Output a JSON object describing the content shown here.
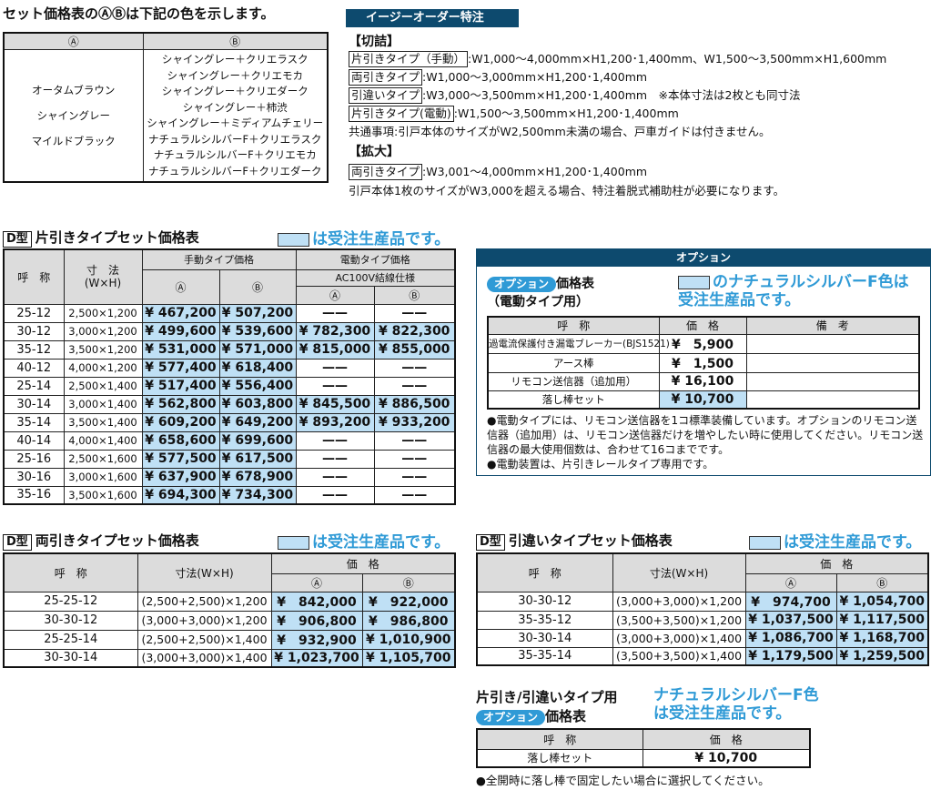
{
  "colors": {
    "accent": "#0d4a6e",
    "highlight": "#bfe0f5",
    "blue_text": "#2f9ad6",
    "header_gray": "#dcdcdc"
  },
  "color_legend": {
    "title": "セット価格表のⒶⒷは下記の色を示します。",
    "head_a": "Ⓐ",
    "head_b": "Ⓑ",
    "a_colors": [
      "オータムブラウン",
      "シャイングレー",
      "マイルドブラック"
    ],
    "b_colors": [
      "シャイングレー＋クリエラスク",
      "シャイングレー＋クリエモカ",
      "シャイングレー＋クリエダーク",
      "シャイングレー＋柿渋",
      "シャイングレー＋ミディアムチェリー",
      "ナチュラルシルバーF＋クリエラスク",
      "ナチュラルシルバーF＋クリエモカ",
      "ナチュラルシルバーF＋クリエダーク"
    ]
  },
  "easy_order": {
    "title": "イージーオーダー特注",
    "cut_heading": "【切詰】",
    "cut_lines": [
      {
        "tag": "片引きタイプ（手動）",
        "text": ":W1,000～4,000mm×H1,200･1,400mm、W1,500～3,500mm×H1,600mm"
      },
      {
        "tag": "両引きタイプ",
        "text": ":W1,000～3,000mm×H1,200･1,400mm"
      },
      {
        "tag": "引違いタイプ",
        "text": ":W3,000～3,500mm×H1,200･1,400mm　※本体寸法は2枚とも同寸法"
      },
      {
        "tag": "片引きタイプ(電動)",
        "text": ":W1,500～3,500mm×H1,200･1,400mm"
      }
    ],
    "common_note": "共通事項:引戸本体のサイズがW2,500mm未満の場合、戸車ガイドは付きません。",
    "expand_heading": "【拡大】",
    "expand_line": {
      "tag": "両引きタイプ",
      "text": ":W3,001～4,000mm×H1,200･1,400mm"
    },
    "expand_note": "引戸本体1枚のサイズがW3,000を超える場合、特注着脱式補助柱が必要になります。"
  },
  "made_to_order_label": "は受注生産品です。",
  "d_tag": "D型",
  "single": {
    "title": "片引きタイプセット価格表",
    "headers": {
      "name": "呼　称",
      "size": "寸　法",
      "size_sub": "(W×H)",
      "manual": "手動タイプ価格",
      "electric": "電動タイプ価格",
      "electric_sub": "AC100V結線仕様",
      "a": "Ⓐ",
      "b": "Ⓑ"
    },
    "rows": [
      [
        "25-12",
        "2,500×1,200",
        "¥ 467,200",
        "¥ 507,200",
        "——",
        "——"
      ],
      [
        "30-12",
        "3,000×1,200",
        "¥ 499,600",
        "¥ 539,600",
        "¥ 782,300",
        "¥ 822,300"
      ],
      [
        "35-12",
        "3,500×1,200",
        "¥ 531,000",
        "¥ 571,000",
        "¥ 815,000",
        "¥ 855,000"
      ],
      [
        "40-12",
        "4,000×1,200",
        "¥ 577,400",
        "¥ 618,400",
        "——",
        "——"
      ],
      [
        "25-14",
        "2,500×1,400",
        "¥ 517,400",
        "¥ 556,400",
        "——",
        "——"
      ],
      [
        "30-14",
        "3,000×1,400",
        "¥ 562,800",
        "¥ 603,800",
        "¥ 845,500",
        "¥ 886,500"
      ],
      [
        "35-14",
        "3,500×1,400",
        "¥ 609,200",
        "¥ 649,200",
        "¥ 893,200",
        "¥ 933,200"
      ],
      [
        "40-14",
        "4,000×1,400",
        "¥ 658,600",
        "¥ 699,600",
        "——",
        "——"
      ],
      [
        "25-16",
        "2,500×1,600",
        "¥ 577,500",
        "¥ 617,500",
        "——",
        "——"
      ],
      [
        "30-16",
        "3,000×1,600",
        "¥ 637,900",
        "¥ 678,900",
        "——",
        "——"
      ],
      [
        "35-16",
        "3,500×1,600",
        "¥ 694,300",
        "¥ 734,300",
        "——",
        "——"
      ]
    ]
  },
  "option": {
    "bar_title": "オプション",
    "pill": "オプション",
    "title": "価格表",
    "title_sub": "（電動タイプ用）",
    "swatch_note_1": "のナチュラルシルバーF色は",
    "swatch_note_2": "受注生産品です。",
    "headers": [
      "呼　称",
      "価　格",
      "備　考"
    ],
    "rows": [
      {
        "name": "過電流保護付き漏電ブレーカー(BJS1521)",
        "price": "¥　5,900",
        "remark": "",
        "made_to_order": false
      },
      {
        "name": "アース棒",
        "price": "¥　1,500",
        "remark": "",
        "made_to_order": false
      },
      {
        "name": "リモコン送信器（追加用）",
        "price": "¥ 16,100",
        "remark": "",
        "made_to_order": false
      },
      {
        "name": "落し棒セット",
        "price": "¥ 10,700",
        "remark": "",
        "made_to_order": true
      }
    ],
    "notes": [
      "●電動タイプには、リモコン送信器を1コ標準装備しています。オプションのリモコン送信器（追加用）は、リモコン送信器だけを増やしたい時に使用してください。リモコン送信器の最大使用個数は、合わせて16コまでです。",
      "●電動装置は、片引きレールタイプ専用です。"
    ]
  },
  "double": {
    "title": "両引きタイプセット価格表",
    "headers": {
      "name": "呼　称",
      "size": "寸法(W×H)",
      "price": "価　格",
      "a": "Ⓐ",
      "b": "Ⓑ"
    },
    "rows": [
      [
        "25-25-12",
        "(2,500+2,500)×1,200",
        "¥　842,000",
        "¥　922,000"
      ],
      [
        "30-30-12",
        "(3,000+3,000)×1,200",
        "¥　906,800",
        "¥　986,800"
      ],
      [
        "25-25-14",
        "(2,500+2,500)×1,400",
        "¥　932,900",
        "¥ 1,010,900"
      ],
      [
        "30-30-14",
        "(3,000+3,000)×1,400",
        "¥ 1,023,700",
        "¥ 1,105,700"
      ]
    ]
  },
  "sliding": {
    "title": "引違いタイプセット価格表",
    "headers": {
      "name": "呼　称",
      "size": "寸法(W×H)",
      "price": "価　格",
      "a": "Ⓐ",
      "b": "Ⓑ"
    },
    "rows": [
      [
        "30-30-12",
        "(3,000+3,000)×1,200",
        "¥　974,700",
        "¥ 1,054,700"
      ],
      [
        "35-35-12",
        "(3,500+3,500)×1,200",
        "¥ 1,037,500",
        "¥ 1,117,500"
      ],
      [
        "30-30-14",
        "(3,000+3,000)×1,400",
        "¥ 1,086,700",
        "¥ 1,168,700"
      ],
      [
        "35-35-14",
        "(3,500+3,500)×1,400",
        "¥ 1,179,500",
        "¥ 1,259,500"
      ]
    ]
  },
  "option2": {
    "title_1": "片引き/引違いタイプ用",
    "pill": "オプション",
    "title_2": "価格表",
    "blue_note_1": "ナチュラルシルバーF色",
    "blue_note_2": "は受注生産品です。",
    "headers": [
      "呼　称",
      "価　格"
    ],
    "rows": [
      {
        "name": "落し棒セット",
        "price": "¥ 10,700"
      }
    ],
    "note": "●全開時に落し棒で固定したい場合に選択してください。"
  }
}
